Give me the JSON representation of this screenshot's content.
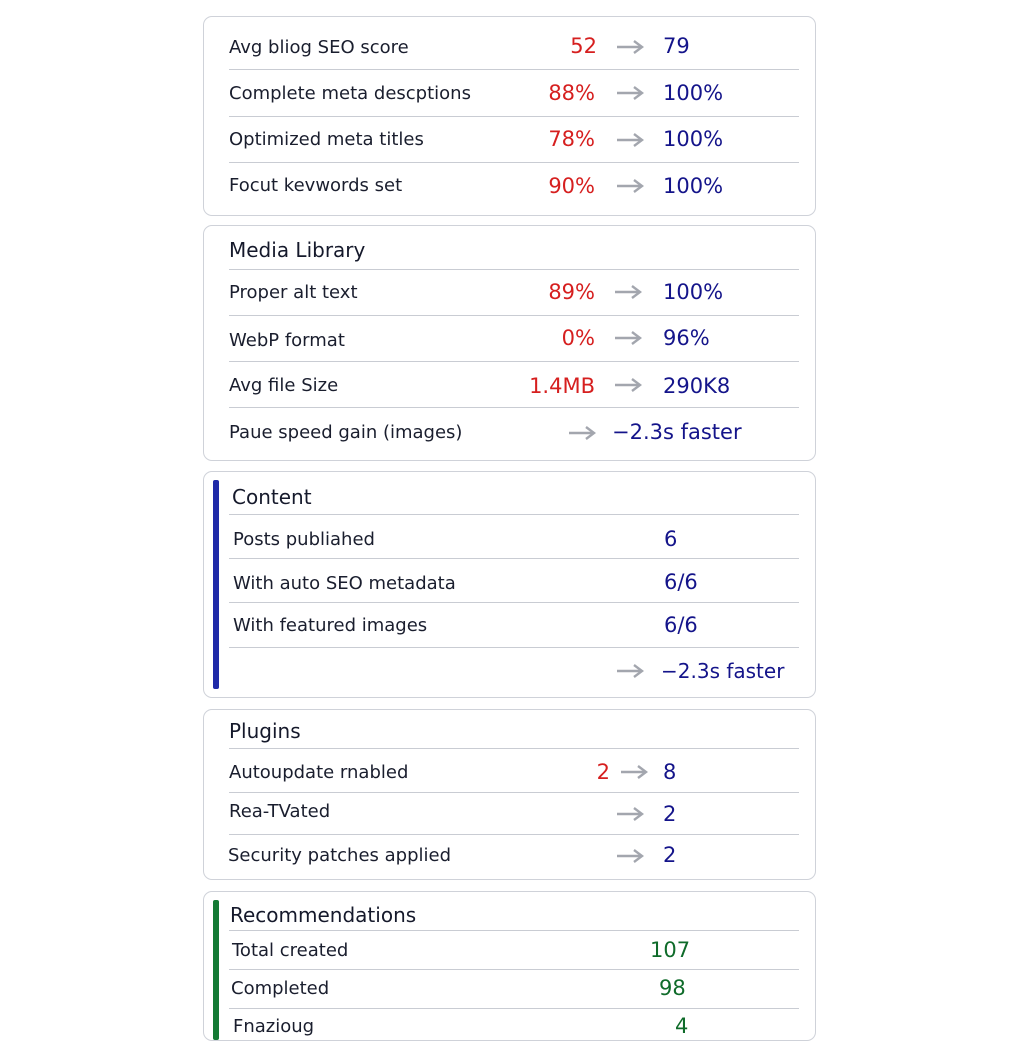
{
  "colors": {
    "before": "#d61f1f",
    "after": "#14148a",
    "green": "#0f6b2a",
    "content_accent": "#1f2aa8",
    "recommendations_accent": "#147a34",
    "arrow": "#a3a6ae"
  },
  "icons": {
    "arrow": "arrow-right-icon"
  },
  "blog_seo": {
    "rows": [
      {
        "label": "Avg bliog SEO score",
        "before": "52",
        "after": "79"
      },
      {
        "label": "Complete meta descptions",
        "before": "88%",
        "after": "100%"
      },
      {
        "label": "Optimized meta titles",
        "before": "78%",
        "after": "100%"
      },
      {
        "label": "Focut kevwords set",
        "before": "90%",
        "after": "100%"
      }
    ]
  },
  "media_library": {
    "title": "Media Library",
    "rows": [
      {
        "label": "Proper alt text",
        "before": "89%",
        "after": "100%"
      },
      {
        "label": "WebP format",
        "before": "0%",
        "after": "96%"
      },
      {
        "label": "Avg file Size",
        "before": "1.4MB",
        "after": "290K8"
      },
      {
        "label": "Paue speed gain (images)",
        "before": "",
        "after": "−2.3s faster"
      }
    ]
  },
  "content": {
    "title": "Content",
    "rows": [
      {
        "label": "Posts publiahed",
        "value": "6"
      },
      {
        "label": "With auto SEO metadata",
        "value": "6/6"
      },
      {
        "label": "With featured images",
        "value": "6/6"
      },
      {
        "label": "",
        "value": "−2.3s faster"
      }
    ]
  },
  "plugins": {
    "title": "Plugins",
    "rows": [
      {
        "label": "Autoupdate rnabled",
        "before": "2",
        "after": "8"
      },
      {
        "label": "Rea-TVated",
        "before": "",
        "after": "2"
      },
      {
        "label": "Security patches applied",
        "before": "",
        "after": "2"
      }
    ]
  },
  "recommendations": {
    "title": "Recommendations",
    "rows": [
      {
        "label": "Total created",
        "value": "107"
      },
      {
        "label": "Completed",
        "value": "98"
      },
      {
        "label": "Fnazioug",
        "value": "4"
      }
    ]
  }
}
